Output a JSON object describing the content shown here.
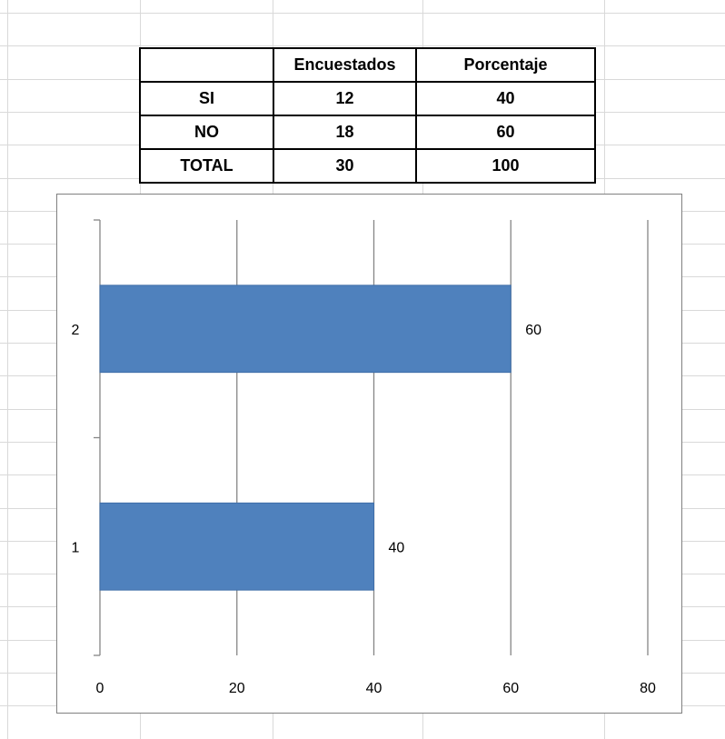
{
  "table": {
    "headers": [
      "",
      "Encuestados",
      "Porcentaje"
    ],
    "rows": [
      [
        "SI",
        "12",
        "40"
      ],
      [
        "NO",
        "18",
        "60"
      ],
      [
        "TOTAL",
        "30",
        "100"
      ]
    ]
  },
  "chart_data": {
    "type": "bar",
    "orientation": "horizontal",
    "categories": [
      "1",
      "2"
    ],
    "values": [
      40,
      60
    ],
    "data_labels": [
      "40",
      "60"
    ],
    "x_ticks": [
      "0",
      "20",
      "40",
      "60",
      "80"
    ],
    "xlim": [
      0,
      80
    ],
    "grid": true,
    "bar_color": "#4F81BD"
  }
}
